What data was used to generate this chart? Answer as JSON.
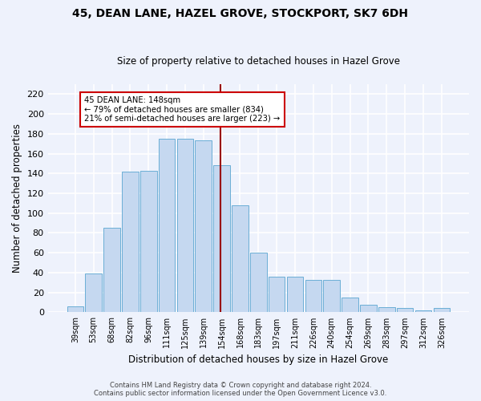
{
  "title_line1": "45, DEAN LANE, HAZEL GROVE, STOCKPORT, SK7 6DH",
  "title_line2": "Size of property relative to detached houses in Hazel Grove",
  "xlabel": "Distribution of detached houses by size in Hazel Grove",
  "ylabel": "Number of detached properties",
  "categories": [
    "39sqm",
    "53sqm",
    "68sqm",
    "82sqm",
    "96sqm",
    "111sqm",
    "125sqm",
    "139sqm",
    "154sqm",
    "168sqm",
    "183sqm",
    "197sqm",
    "211sqm",
    "226sqm",
    "240sqm",
    "254sqm",
    "269sqm",
    "283sqm",
    "297sqm",
    "312sqm",
    "326sqm"
  ],
  "bar_heights": [
    6,
    39,
    85,
    142,
    143,
    175,
    175,
    173,
    148,
    108,
    60,
    36,
    36,
    33,
    33,
    15,
    8,
    5,
    4,
    2,
    4
  ],
  "property_label": "45 DEAN LANE: 148sqm",
  "annotation_line2": "← 79% of detached houses are smaller (834)",
  "annotation_line3": "21% of semi-detached houses are larger (223) →",
  "bar_color": "#c5d8f0",
  "bar_edge_color": "#6baed6",
  "vline_color": "#990000",
  "annotation_box_color": "#ffffff",
  "annotation_box_edge": "#cc0000",
  "footer_line1": "Contains HM Land Registry data © Crown copyright and database right 2024.",
  "footer_line2": "Contains public sector information licensed under the Open Government Licence v3.0.",
  "background_color": "#eef2fc",
  "grid_color": "#ffffff",
  "yticks": [
    0,
    20,
    40,
    60,
    80,
    100,
    120,
    140,
    160,
    180,
    200,
    220
  ],
  "ylim": [
    0,
    230
  ]
}
